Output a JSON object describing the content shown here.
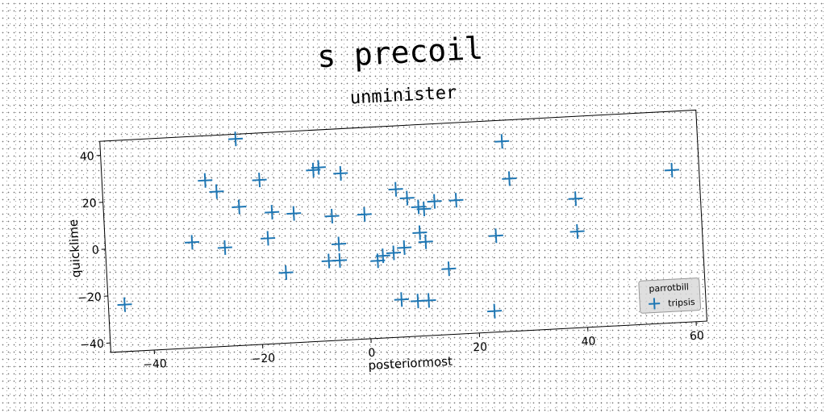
{
  "chart_data": {
    "type": "scatter",
    "title": "s precoil",
    "subtitle": "unminister",
    "xlabel": "posteriormost",
    "ylabel": "quicklime",
    "xlim": [
      -48,
      62
    ],
    "ylim": [
      -44,
      46
    ],
    "xticks": [
      -40,
      -20,
      0,
      20,
      40,
      60
    ],
    "yticks": [
      -40,
      -20,
      0,
      20,
      40
    ],
    "grid": false,
    "legend": {
      "title": "parrotbill",
      "placement": "lower-right"
    },
    "series": [
      {
        "name": "tripsis",
        "marker": "plus",
        "color": "#1f77b4",
        "points": [
          [
            -23,
            44
          ],
          [
            26,
            37
          ],
          [
            -29,
            27
          ],
          [
            -27,
            22
          ],
          [
            -19,
            26
          ],
          [
            -9,
            29
          ],
          [
            -8,
            30
          ],
          [
            -4,
            27
          ],
          [
            57,
            21
          ],
          [
            27,
            21
          ],
          [
            -23,
            15
          ],
          [
            -17,
            12
          ],
          [
            -13,
            11
          ],
          [
            -6,
            9
          ],
          [
            0,
            9
          ],
          [
            6,
            19
          ],
          [
            8,
            15
          ],
          [
            10,
            11
          ],
          [
            11,
            10
          ],
          [
            13,
            13
          ],
          [
            17,
            13
          ],
          [
            39,
            11
          ],
          [
            -32,
            1
          ],
          [
            -26,
            -2
          ],
          [
            -18,
            1
          ],
          [
            -5,
            -3
          ],
          [
            10,
            0
          ],
          [
            11,
            -4
          ],
          [
            7,
            -6
          ],
          [
            5,
            -8
          ],
          [
            3,
            -9
          ],
          [
            2,
            -11
          ],
          [
            -7,
            -10
          ],
          [
            -5,
            -10
          ],
          [
            -15,
            -14
          ],
          [
            24,
            -3
          ],
          [
            39,
            -3
          ],
          [
            15,
            -16
          ],
          [
            -45,
            -24
          ],
          [
            6,
            -28
          ],
          [
            9,
            -29
          ],
          [
            11,
            -29
          ],
          [
            23,
            -35
          ]
        ]
      }
    ]
  }
}
